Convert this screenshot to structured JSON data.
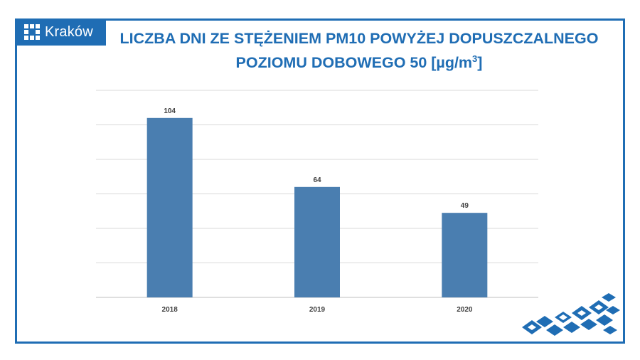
{
  "logo": {
    "text": "Kraków",
    "color": "#1f6db4"
  },
  "title": {
    "line1": "LICZBA DNI ZE STĘŻENIEM PM10 POWYŻEJ DOPUSZCZALNEGO",
    "line2_prefix": "POZIOMU DOBOWEGO 50 [µg/m",
    "line2_sup": "3",
    "line2_suffix": "]"
  },
  "chart_data": {
    "type": "bar",
    "categories": [
      "2018",
      "2019",
      "2020"
    ],
    "values": [
      104,
      64,
      49
    ],
    "data_labels": [
      "104",
      "64",
      "49"
    ],
    "ylim": [
      0,
      120
    ],
    "gridline_step": 20,
    "grid": true,
    "bar_color": "#4a7eb0",
    "xlabel": "",
    "ylabel": ""
  },
  "colors": {
    "frame": "#1f6db4",
    "bars": "#4a7eb0",
    "grid": "#d9d9d9"
  }
}
